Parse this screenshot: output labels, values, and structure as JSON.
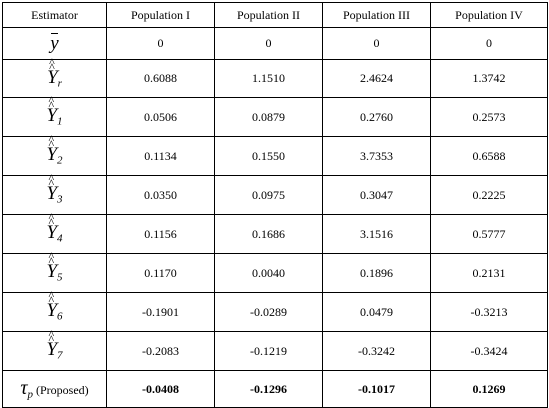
{
  "table": {
    "headers": [
      "Estimator",
      "Population I",
      "Population II",
      "Population III",
      "Population IV"
    ],
    "rows": [
      {
        "symbol": "y",
        "sub": "",
        "type": "bar",
        "values": [
          "0",
          "0",
          "0",
          "0"
        ]
      },
      {
        "symbol": "Y",
        "sub": "r",
        "type": "hat",
        "values": [
          "0.6088",
          "1.1510",
          "2.4624",
          "1.3742"
        ]
      },
      {
        "symbol": "Y",
        "sub": "1",
        "type": "hat",
        "values": [
          "0.0506",
          "0.0879",
          "0.2760",
          "0.2573"
        ]
      },
      {
        "symbol": "Y",
        "sub": "2",
        "type": "hat",
        "values": [
          "0.1134",
          "0.1550",
          "3.7353",
          "0.6588"
        ]
      },
      {
        "symbol": "Y",
        "sub": "3",
        "type": "hat",
        "values": [
          "0.0350",
          "0.0975",
          "0.3047",
          "0.2225"
        ]
      },
      {
        "symbol": "Y",
        "sub": "4",
        "type": "hat",
        "values": [
          "0.1156",
          "0.1686",
          "3.1516",
          "0.5777"
        ]
      },
      {
        "symbol": "Y",
        "sub": "5",
        "type": "hat",
        "values": [
          "0.1170",
          "0.0040",
          "0.1896",
          "0.2131"
        ]
      },
      {
        "symbol": "Y",
        "sub": "6",
        "type": "hat",
        "values": [
          "-0.1901",
          "-0.0289",
          "0.0479",
          "-0.3213"
        ]
      },
      {
        "symbol": "Y",
        "sub": "7",
        "type": "hat",
        "values": [
          "-0.2083",
          "-0.1219",
          "-0.3242",
          "-0.3424"
        ]
      }
    ],
    "proposed": {
      "symbol": "τ",
      "sub": "p",
      "label": "(Proposed)",
      "values": [
        "-0.0408",
        "-0.1296",
        "-0.1017",
        "0.1269"
      ]
    }
  }
}
